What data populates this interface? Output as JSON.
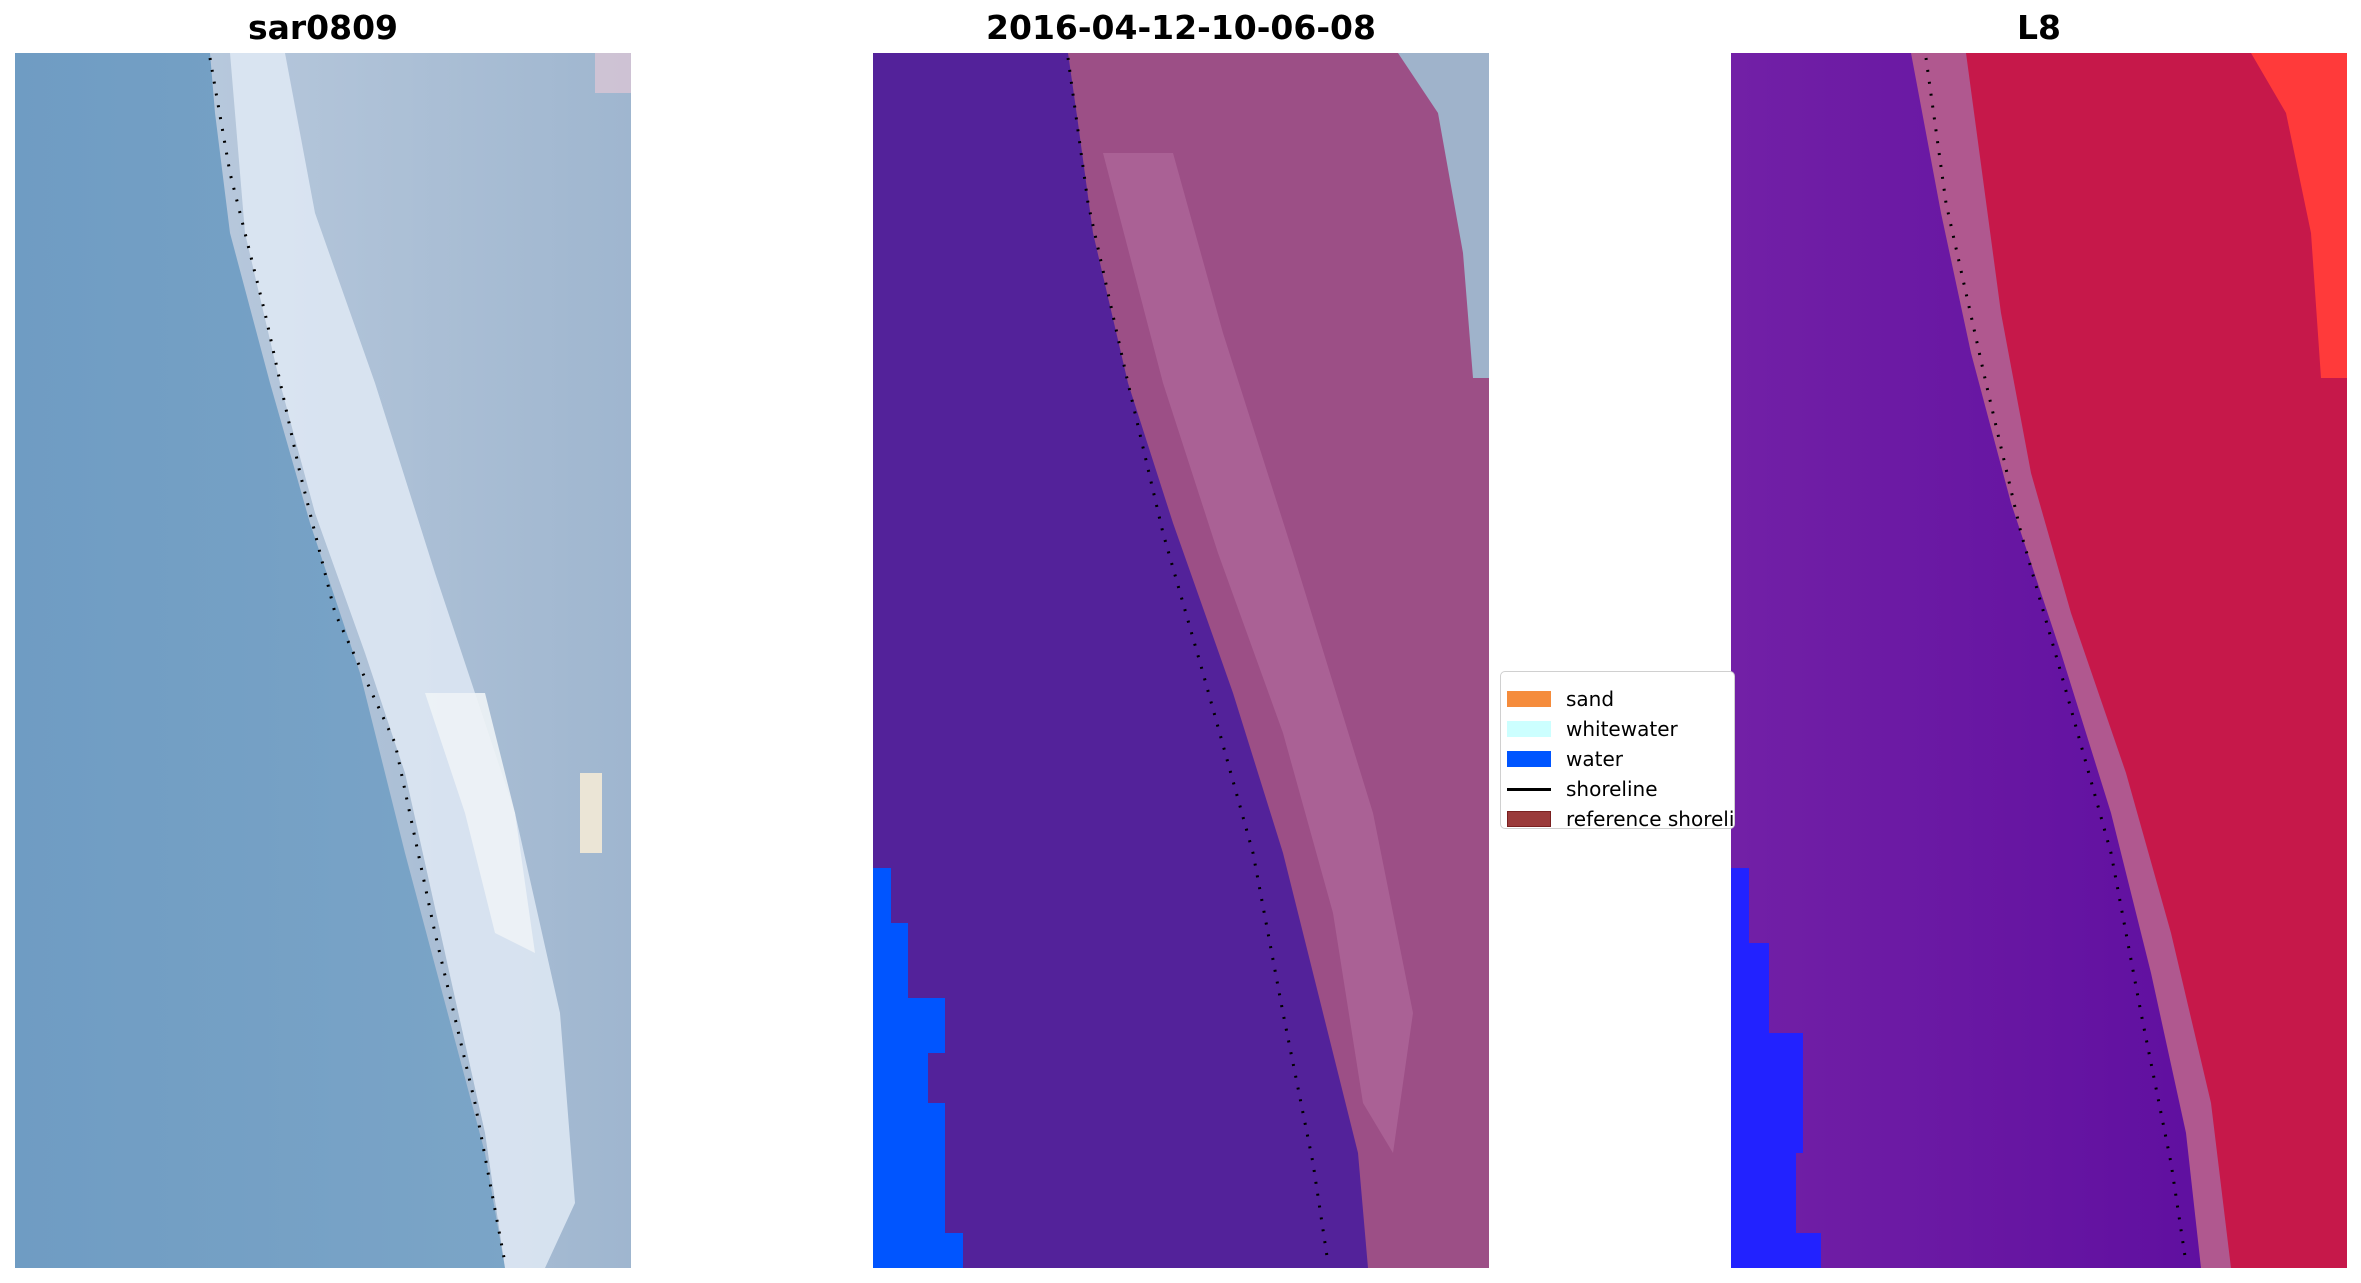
{
  "panels": [
    {
      "title": "sar0809"
    },
    {
      "title": "2016-04-12-10-06-08"
    },
    {
      "title": "L8"
    }
  ],
  "legend": {
    "items": [
      {
        "label": "sand",
        "color": "#f58c3c",
        "kind": "patch"
      },
      {
        "label": "whitewater",
        "color": "#ccffff",
        "kind": "patch"
      },
      {
        "label": "water",
        "color": "#0055ff",
        "kind": "patch"
      },
      {
        "label": "shoreline",
        "color": "#000000",
        "kind": "line"
      },
      {
        "label": "reference shoreline",
        "color": "#9a3a3a",
        "kind": "patch"
      }
    ]
  },
  "colors": {
    "ocean_rgb": "#6f9cc3",
    "land_rgb": "#a8bdd3",
    "surf_rgb": "#e4eef8",
    "class_background": "#53229a",
    "class_land_overlay": "#a5568d",
    "water_class": "#0055ff",
    "ndwi_water": "#6a1aa2",
    "ndwi_land": "#c6184a",
    "ndwi_blue": "#2222ff",
    "ndwi_bright": "#ff3a3a"
  }
}
